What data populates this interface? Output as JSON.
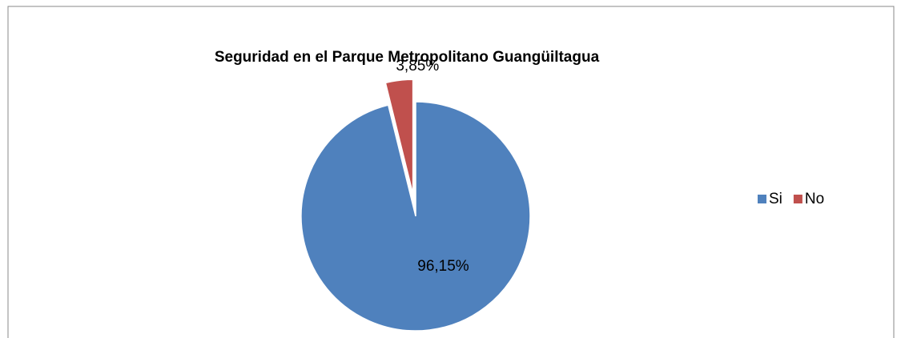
{
  "chart_data": {
    "type": "pie",
    "title": "Seguridad en el Parque Metropolitano Guangüiltagua",
    "categories": [
      "Si",
      "No"
    ],
    "values": [
      96.15,
      3.85
    ],
    "value_labels": [
      "96,15%",
      "3,85%"
    ],
    "colors": [
      "#4f81bd",
      "#c0504d"
    ],
    "legend": "right"
  }
}
